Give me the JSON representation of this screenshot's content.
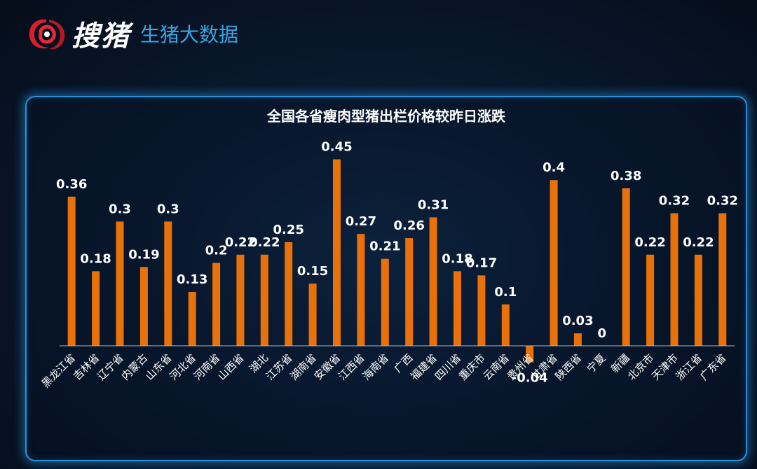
{
  "brand": {
    "name": "搜猪",
    "subtitle": "生猪大数据",
    "logo_icon": "red-brush-circle-icon"
  },
  "colors": {
    "bar": "#e8710a",
    "text": "#ffffff",
    "panel_border": "#2b8fd8",
    "subtitle": "#37a6e6"
  },
  "chart_data": {
    "type": "bar",
    "title": "全国各省瘦肉型猪出栏价格较昨日涨跌",
    "xlabel": "",
    "ylabel": "",
    "ylim": [
      -0.05,
      0.45
    ],
    "grid": false,
    "categories": [
      "黑龙江省",
      "吉林省",
      "辽宁省",
      "内蒙古",
      "山东省",
      "河北省",
      "河南省",
      "山西省",
      "湖北",
      "江苏省",
      "湖南省",
      "安徽省",
      "江西省",
      "海南省",
      "广西",
      "福建省",
      "四川省",
      "重庆市",
      "云南省",
      "贵州省",
      "甘肃省",
      "陕西省",
      "宁夏",
      "新疆",
      "北京市",
      "天津市",
      "浙江省",
      "广东省"
    ],
    "values": [
      0.36,
      0.18,
      0.3,
      0.19,
      0.3,
      0.13,
      0.2,
      0.22,
      0.22,
      0.25,
      0.15,
      0.45,
      0.27,
      0.21,
      0.26,
      0.31,
      0.18,
      0.17,
      0.1,
      -0.04,
      0.4,
      0.03,
      0,
      0.38,
      0.22,
      0.32,
      0.22,
      0.32
    ],
    "data_labels": [
      "0.36",
      "0.18",
      "0.3",
      "0.19",
      "0.3",
      "0.13",
      "0.2",
      "0.22",
      "0.22",
      "0.25",
      "0.15",
      "0.45",
      "0.27",
      "0.21",
      "0.26",
      "0.31",
      "0.18",
      "0.17",
      "0.1",
      "-0.04",
      "0.4",
      "0.03",
      "0",
      "0.38",
      "0.22",
      "0.32",
      "0.22",
      "0.32"
    ]
  }
}
